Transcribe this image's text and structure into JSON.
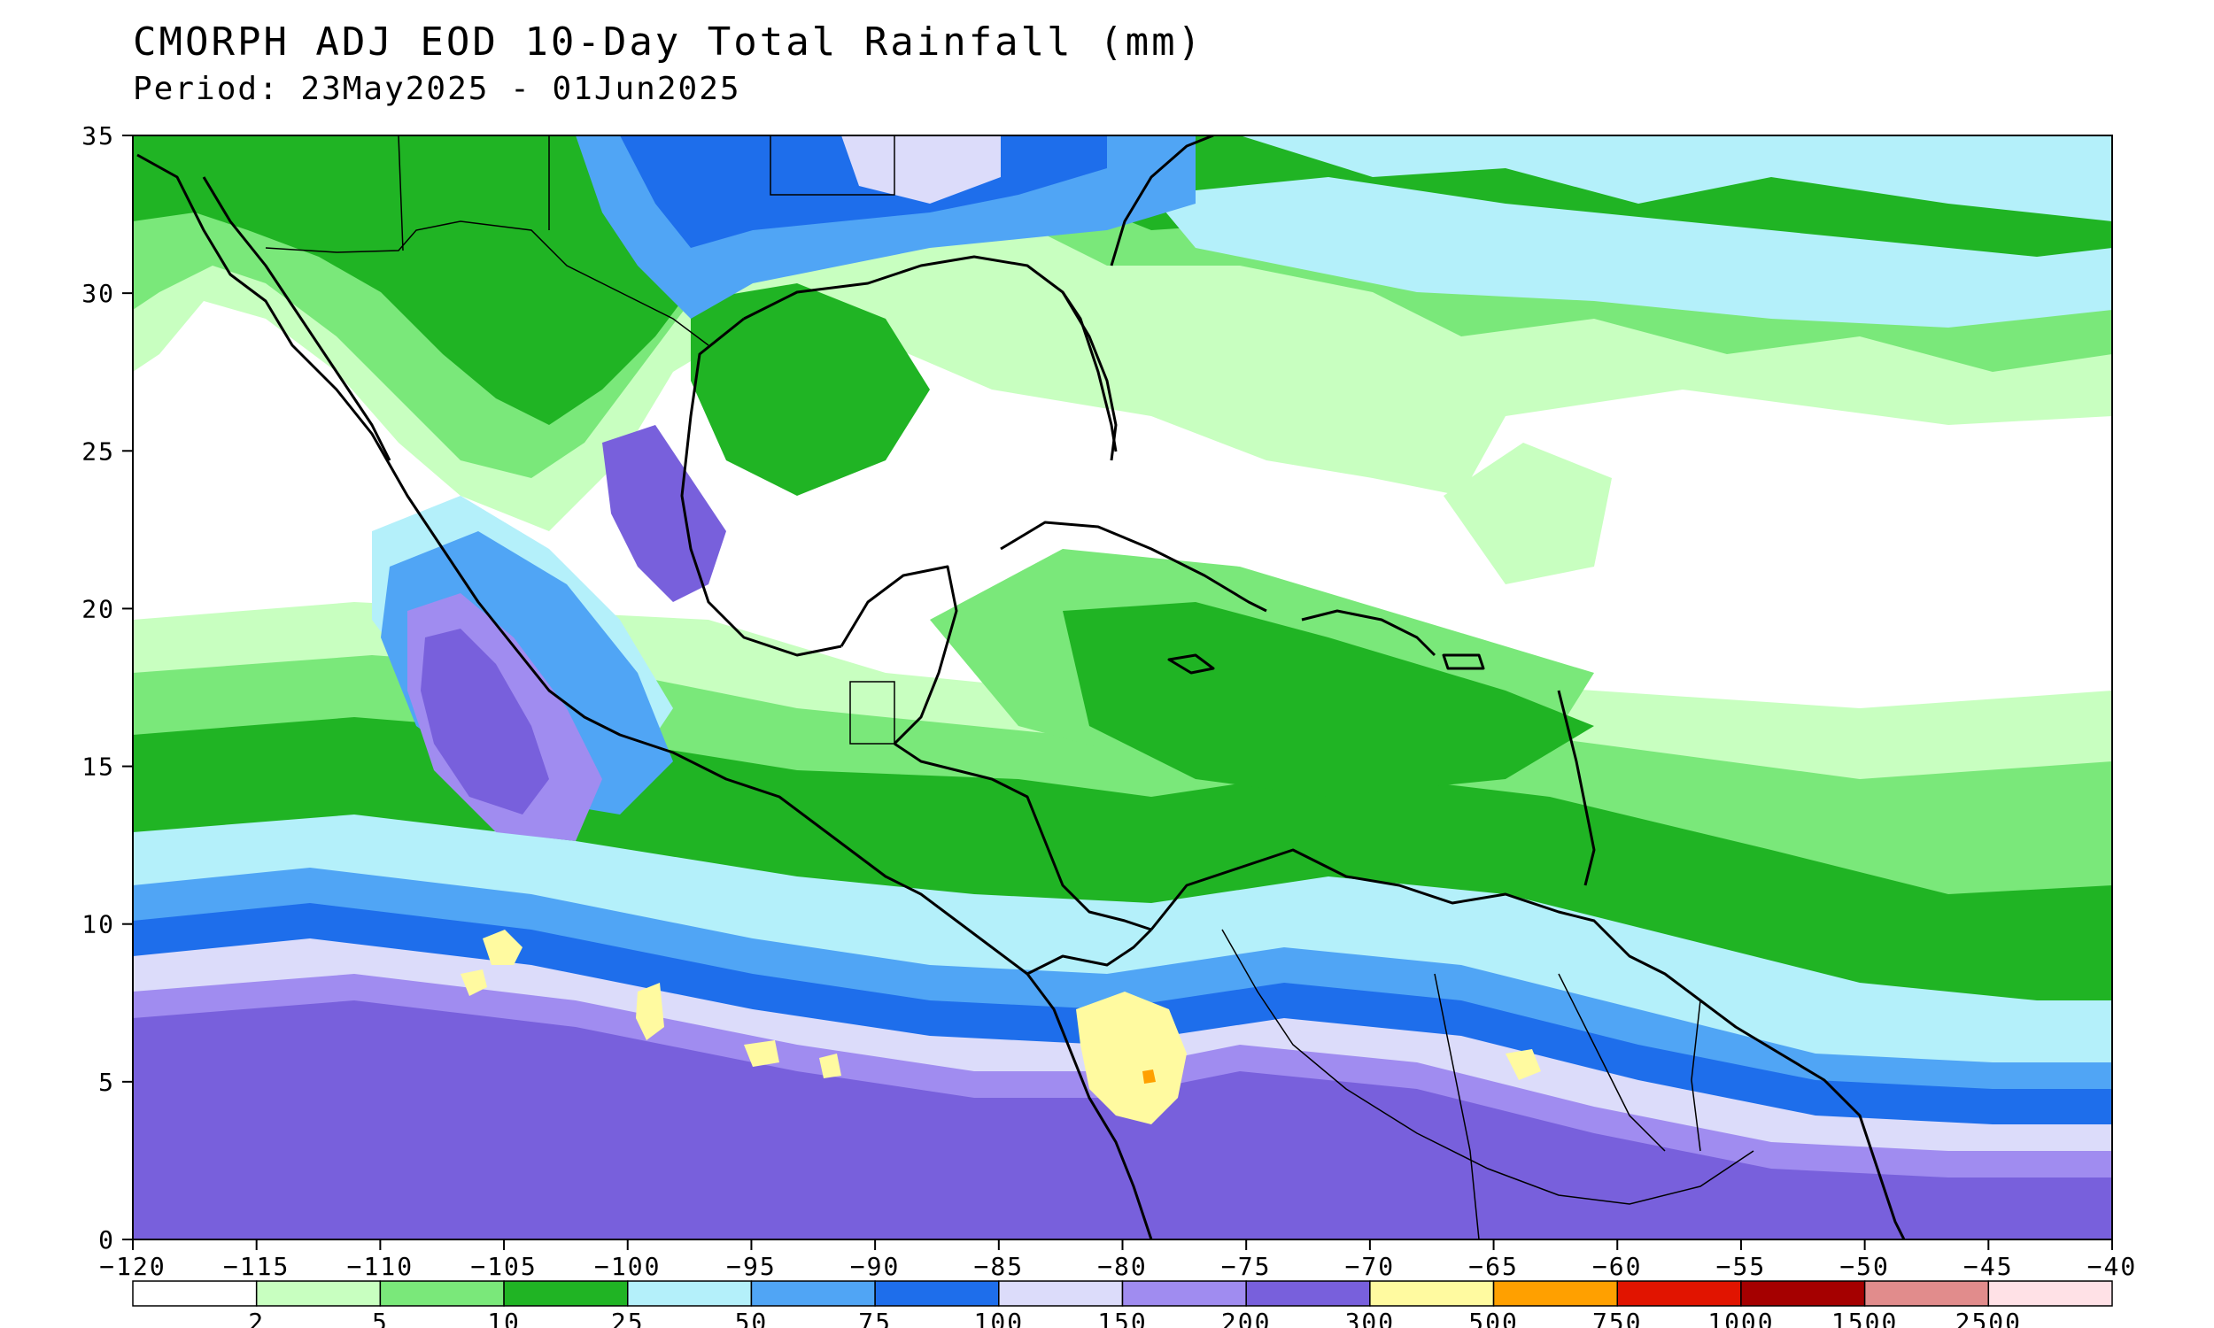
{
  "title": "CMORPH ADJ EOD 10-Day Total Rainfall (mm)",
  "subtitle": "Period: 23May2025 - 01Jun2025",
  "map": {
    "lon_range": [
      -120,
      -40
    ],
    "lat_range": [
      0,
      35
    ],
    "lon_ticks": [
      -120,
      -115,
      -110,
      -105,
      -100,
      -95,
      -90,
      -85,
      -80,
      -75,
      -70,
      -65,
      -60,
      -55,
      -50,
      -45,
      -40
    ],
    "lat_ticks": [
      0,
      5,
      10,
      15,
      20,
      25,
      30,
      35
    ],
    "lon_tick_labels": [
      "−120",
      "−115",
      "−110",
      "−105",
      "−100",
      "−95",
      "−90",
      "−85",
      "−80",
      "−75",
      "−70",
      "−65",
      "−60",
      "−55",
      "−50",
      "−45",
      "−40"
    ],
    "lat_tick_labels": [
      "0",
      "5",
      "10",
      "15",
      "20",
      "25",
      "30",
      "35"
    ]
  },
  "colors": {
    "c0": "#ffffff",
    "c2": "#c8ffc0",
    "c5": "#7ae87a",
    "c10": "#20b424",
    "c25": "#b4f0fa",
    "c50": "#50a5f5",
    "c75": "#1e6eeb",
    "c100": "#dcdcfa",
    "c150": "#a08cf0",
    "c200": "#7860dc",
    "c300": "#fffaa0",
    "c500": "#ffa000",
    "c750": "#e11400",
    "c1000": "#a50000",
    "c1500": "#e18c8c",
    "c2500": "#ffe1e6",
    "coast": "#000000"
  },
  "colorbar": {
    "labels": [
      "2",
      "5",
      "10",
      "25",
      "50",
      "75",
      "100",
      "150",
      "200",
      "300",
      "500",
      "750",
      "1000",
      "1500",
      "2500"
    ],
    "colors": [
      "#ffffff",
      "#c8ffc0",
      "#7ae87a",
      "#20b424",
      "#b4f0fa",
      "#50a5f5",
      "#1e6eeb",
      "#dcdcfa",
      "#a08cf0",
      "#7860dc",
      "#fffaa0",
      "#ffa000",
      "#e11400",
      "#a50000",
      "#e18c8c",
      "#ffe1e6"
    ]
  }
}
